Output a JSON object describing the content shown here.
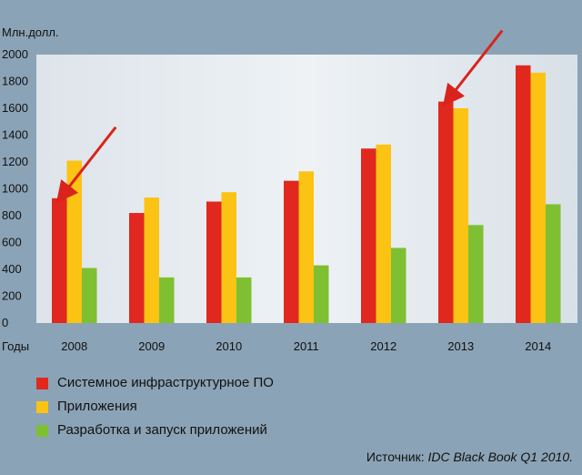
{
  "colors": {
    "background": "#8ba3b6",
    "plot_background": "#e1e7ec",
    "arrow": "#d8241c"
  },
  "chart_data": {
    "type": "bar",
    "ylabel": "Млн.долл.",
    "xlabel": "Годы",
    "ylim": [
      0,
      2000
    ],
    "yticks": [
      0,
      200,
      400,
      600,
      800,
      1000,
      1200,
      1400,
      1600,
      1800,
      2000
    ],
    "grid": false,
    "legend_position": "bottom-left",
    "categories": [
      "2008",
      "2009",
      "2010",
      "2011",
      "2012",
      "2013",
      "2014"
    ],
    "series": [
      {
        "name": "Системное инфраструктурное ПО",
        "color": "#e0281e",
        "values": [
          930,
          820,
          905,
          1060,
          1300,
          1650,
          1920
        ]
      },
      {
        "name": "Приложения",
        "color": "#fbc313",
        "values": [
          1210,
          935,
          975,
          1130,
          1330,
          1600,
          1865
        ]
      },
      {
        "name": "Разработка и запуск приложений",
        "color": "#7fc032",
        "values": [
          410,
          340,
          340,
          430,
          560,
          730,
          885
        ]
      }
    ],
    "annotations": [
      {
        "type": "arrow",
        "target_category": "2008",
        "target_series": 0
      },
      {
        "type": "arrow",
        "target_category": "2013",
        "target_series": 0
      }
    ]
  },
  "source": {
    "prefix": "Источник: ",
    "text": "IDC Black Book Q1 2010."
  }
}
